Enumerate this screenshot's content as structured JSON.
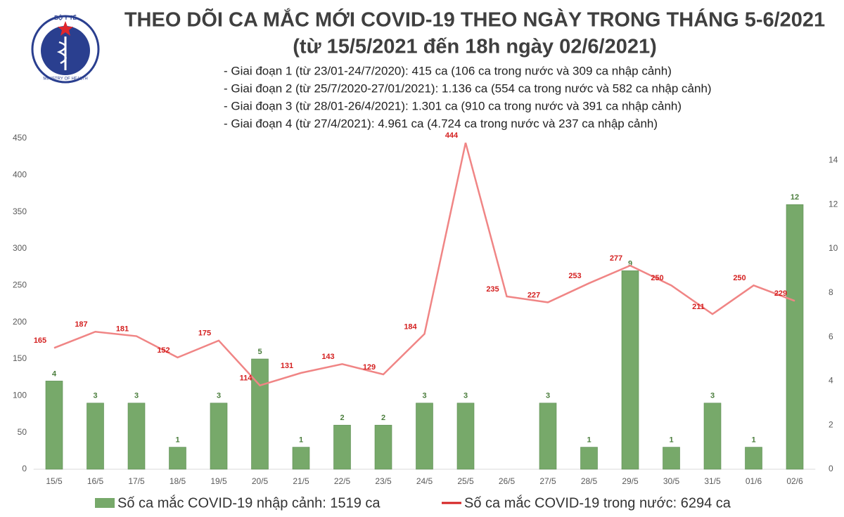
{
  "chart_data": {
    "type": "bar-line",
    "title": "THEO DÕI CA MẮC MỚI COVID-19 THEO NGÀY TRONG THÁNG 5-6/2021",
    "subtitle": "(từ 15/5/2021 đến 18h ngày 02/6/2021)",
    "logo": [
      "BỘ Y TẾ",
      "MINISTRY OF HEALTH"
    ],
    "notes": [
      "- Giai đoạn 1 (từ 23/01-24/7/2020): 415 ca (106 ca trong nước và 309 ca nhập cảnh)",
      "- Giai đoạn 2 (từ 25/7/2020-27/01/2021): 1.136 ca (554 ca trong nước và 582 ca nhập cảnh)",
      "- Giai đoạn 3 (từ 28/01-26/4/2021): 1.301 ca (910 ca trong nước và 391 ca nhập cảnh)",
      "- Giai đoạn 4 (từ 27/4/2021): 4.961 ca (4.724 ca trong nước và 237 ca nhập cảnh)"
    ],
    "categories": [
      "15/5",
      "16/5",
      "17/5",
      "18/5",
      "19/5",
      "20/5",
      "21/5",
      "22/5",
      "23/5",
      "24/5",
      "25/5",
      "26/5",
      "27/5",
      "28/5",
      "29/5",
      "30/5",
      "31/5",
      "01/6",
      "02/6"
    ],
    "series": [
      {
        "name": "Số ca mắc COVID-19 nhập cảnh: 1519 ca",
        "color": "#77a96a",
        "kind": "bar",
        "axis": "y2",
        "values": [
          4,
          3,
          3,
          1,
          3,
          5,
          1,
          2,
          2,
          3,
          3,
          null,
          3,
          1,
          9,
          1,
          3,
          1,
          12
        ]
      },
      {
        "name": "Số ca mắc COVID-19 trong nước: 6294 ca",
        "color": "#f08585",
        "kind": "line",
        "values": [
          165,
          187,
          181,
          152,
          175,
          114,
          131,
          143,
          129,
          184,
          444,
          235,
          227,
          253,
          277,
          250,
          211,
          250,
          229
        ]
      }
    ],
    "ylim": [
      0,
      450
    ],
    "yticks": [
      0,
      50,
      100,
      150,
      200,
      250,
      300,
      350,
      400,
      450
    ],
    "y2lim": [
      0,
      15
    ],
    "y2ticks": [
      0,
      2,
      4,
      6,
      8,
      10,
      12,
      14
    ]
  }
}
